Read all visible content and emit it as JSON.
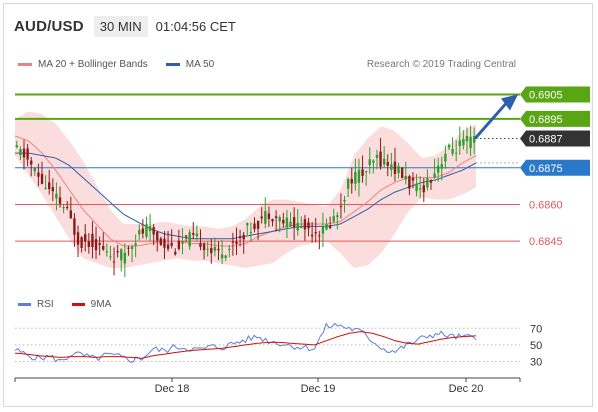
{
  "header": {
    "symbol": "AUD/USD",
    "timeframe": "30 MIN",
    "time": "01:04:56 CET"
  },
  "legend": {
    "bollinger_label": "MA 20 + Bollinger Bands",
    "ma50_label": "MA 50",
    "credit": "Research © 2019 Trading Central",
    "rsi_label": "RSI",
    "rsi_ma_label": "9MA"
  },
  "colors": {
    "up_candle": "#2e9e2e",
    "down_candle": "#8b1a1a",
    "bollinger_band": "#f8b4b4",
    "ma20": "#f08080",
    "ma50": "#2e5fa8",
    "resistance": "#5aa514",
    "support": "#e05a5a",
    "pivot": "#2979c8",
    "current": "#333333",
    "rsi": "#5b7fd6",
    "rsi_ma": "#d01010",
    "arrow": "#2e5fa8"
  },
  "chart_data": {
    "type": "candlestick",
    "title": "AUD/USD",
    "timeframe": "30 MIN",
    "x_labels": [
      "Dec 18",
      "Dec 19",
      "Dec 20"
    ],
    "ylim": [
      0.6825,
      0.6915
    ],
    "levels": [
      {
        "value": 0.6905,
        "label": "0.6905",
        "kind": "resistance"
      },
      {
        "value": 0.6895,
        "label": "0.6895",
        "kind": "resistance"
      },
      {
        "value": 0.6887,
        "label": "0.6887",
        "kind": "current"
      },
      {
        "value": 0.6875,
        "label": "0.6875",
        "kind": "pivot"
      },
      {
        "value": 0.686,
        "label": "0.6860",
        "kind": "support"
      },
      {
        "value": 0.6845,
        "label": "0.6845",
        "kind": "support"
      }
    ],
    "forecast_arrow": {
      "from": 0.6887,
      "to": 0.6905
    },
    "price_path": [
      0.6883,
      0.688,
      0.6871,
      0.6864,
      0.6858,
      0.6845,
      0.6845,
      0.684,
      0.6838,
      0.6846,
      0.685,
      0.6845,
      0.6842,
      0.6846,
      0.6845,
      0.684,
      0.6842,
      0.6848,
      0.6852,
      0.6857,
      0.6853,
      0.6852,
      0.685,
      0.6849,
      0.6856,
      0.6871,
      0.6873,
      0.6879,
      0.6876,
      0.6871,
      0.6865,
      0.6872,
      0.6881,
      0.6884,
      0.6886
    ],
    "ma20_path": [
      0.6888,
      0.6886,
      0.6881,
      0.6874,
      0.6866,
      0.6858,
      0.6852,
      0.6846,
      0.6843,
      0.6843,
      0.6844,
      0.6845,
      0.6845,
      0.6844,
      0.6844,
      0.6843,
      0.6843,
      0.6844,
      0.6847,
      0.6849,
      0.6851,
      0.6852,
      0.6852,
      0.6852,
      0.6853,
      0.6857,
      0.6861,
      0.6866,
      0.6869,
      0.6871,
      0.6871,
      0.6871,
      0.6873,
      0.6877,
      0.688
    ],
    "band_upper_path": [
      0.6895,
      0.6898,
      0.6897,
      0.6893,
      0.6886,
      0.6878,
      0.6868,
      0.6858,
      0.6852,
      0.6852,
      0.6852,
      0.6853,
      0.6852,
      0.6851,
      0.6851,
      0.685,
      0.6851,
      0.6854,
      0.6859,
      0.6862,
      0.6862,
      0.6861,
      0.686,
      0.6859,
      0.6866,
      0.688,
      0.6887,
      0.6892,
      0.689,
      0.6885,
      0.6879,
      0.688,
      0.6884,
      0.689,
      0.6893
    ],
    "band_lower_path": [
      0.688,
      0.6872,
      0.6864,
      0.6855,
      0.6846,
      0.6838,
      0.6836,
      0.6834,
      0.6834,
      0.6835,
      0.6836,
      0.6837,
      0.6838,
      0.6837,
      0.6837,
      0.6836,
      0.6835,
      0.6834,
      0.6835,
      0.6836,
      0.684,
      0.6843,
      0.6844,
      0.6845,
      0.684,
      0.6834,
      0.6835,
      0.684,
      0.6848,
      0.6857,
      0.6863,
      0.6862,
      0.6862,
      0.6864,
      0.6867
    ],
    "ma50_path": [
      0.6881,
      0.6881,
      0.688,
      0.6879,
      0.6876,
      0.6871,
      0.6866,
      0.6861,
      0.6856,
      0.6853,
      0.685,
      0.6848,
      0.6847,
      0.6846,
      0.6846,
      0.6846,
      0.6846,
      0.6847,
      0.6848,
      0.6849,
      0.685,
      0.6851,
      0.6851,
      0.6851,
      0.6852,
      0.6855,
      0.6858,
      0.6862,
      0.6865,
      0.6867,
      0.6869,
      0.687,
      0.6872,
      0.6874,
      0.6877
    ],
    "rsi": {
      "ylim": [
        15,
        80
      ],
      "ticks": [
        30,
        50,
        70
      ],
      "values": [
        44,
        38,
        34,
        36,
        30,
        40,
        37,
        33,
        38,
        36,
        32,
        34,
        45,
        43,
        48,
        46,
        44,
        48,
        47,
        52,
        56,
        60,
        55,
        52,
        49,
        47,
        46,
        72,
        74,
        70,
        66,
        55,
        45,
        42,
        50,
        56,
        62,
        63,
        60,
        59,
        60
      ],
      "ma_values": [
        40,
        39,
        37,
        36,
        35,
        36,
        36,
        35,
        36,
        36,
        35,
        34,
        37,
        39,
        41,
        43,
        44,
        45,
        46,
        48,
        50,
        52,
        53,
        53,
        52,
        51,
        50,
        55,
        60,
        64,
        66,
        64,
        60,
        55,
        52,
        51,
        54,
        57,
        59,
        60,
        61
      ]
    }
  }
}
